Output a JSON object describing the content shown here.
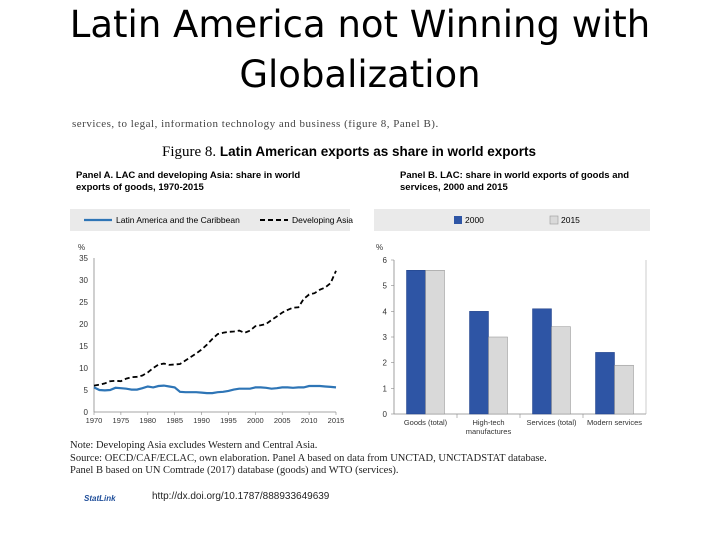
{
  "slide": {
    "title": "Latin America not Winning with Globalization"
  },
  "figure": {
    "header_cut_text": "services, to legal, information technology and business (figure 8, Panel B).",
    "number": "Figure 8.",
    "title": "Latin American exports as share in world exports",
    "notes": [
      "Note: Developing Asia excludes Western and Central Asia.",
      "Source: OECD/CAF/ECLAC, own elaboration. Panel A based on data from UNCTAD, UNCTADSTAT database.",
      "Panel B based on UN Comtrade (2017) database (goods) and WTO (services)."
    ],
    "statlink_label": "StatLink",
    "statlink_url": "http://dx.doi.org/10.1787/888933649639"
  },
  "chart_data": [
    {
      "type": "line",
      "title": "Panel A. LAC and developing Asia: share in world exports of goods, 1970-2015",
      "ylabel": "%",
      "ylim": [
        0,
        35
      ],
      "yticks": [
        "0",
        "5",
        "10",
        "15",
        "20",
        "25",
        "30",
        "35"
      ],
      "xlim": [
        1970,
        2015
      ],
      "xticks": [
        "1970",
        "1975",
        "1980",
        "1985",
        "1990",
        "1995",
        "2000",
        "2005",
        "2010",
        "2015"
      ],
      "grid": false,
      "legend_position": "top",
      "colors": {
        "lac": "#2e75b6",
        "asia": "#000000"
      },
      "series": [
        {
          "name": "Latin America and the Caribbean",
          "style": "solid",
          "x": [
            1970,
            1971,
            1972,
            1973,
            1974,
            1975,
            1976,
            1977,
            1978,
            1979,
            1980,
            1981,
            1982,
            1983,
            1984,
            1985,
            1986,
            1987,
            1988,
            1989,
            1990,
            1991,
            1992,
            1993,
            1994,
            1995,
            1996,
            1997,
            1998,
            1999,
            2000,
            2001,
            2002,
            2003,
            2004,
            2005,
            2006,
            2007,
            2008,
            2009,
            2010,
            2011,
            2012,
            2013,
            2014,
            2015
          ],
          "values": [
            5.6,
            5.0,
            4.9,
            5.0,
            5.5,
            5.4,
            5.3,
            5.1,
            5.1,
            5.4,
            5.8,
            5.6,
            5.9,
            6.0,
            5.8,
            5.6,
            4.6,
            4.5,
            4.5,
            4.5,
            4.4,
            4.3,
            4.3,
            4.5,
            4.6,
            4.8,
            5.1,
            5.3,
            5.3,
            5.3,
            5.6,
            5.6,
            5.5,
            5.3,
            5.4,
            5.6,
            5.6,
            5.5,
            5.6,
            5.6,
            5.9,
            5.9,
            5.9,
            5.8,
            5.7,
            5.6
          ]
        },
        {
          "name": "Developing Asia",
          "style": "dashed",
          "x": [
            1970,
            1971,
            1972,
            1973,
            1974,
            1975,
            1976,
            1977,
            1978,
            1979,
            1980,
            1981,
            1982,
            1983,
            1984,
            1985,
            1986,
            1987,
            1988,
            1989,
            1990,
            1991,
            1992,
            1993,
            1994,
            1995,
            1996,
            1997,
            1998,
            1999,
            2000,
            2001,
            2002,
            2003,
            2004,
            2005,
            2006,
            2007,
            2008,
            2009,
            2010,
            2011,
            2012,
            2013,
            2014,
            2015
          ],
          "values": [
            6.0,
            6.2,
            6.5,
            7.0,
            7.1,
            7.0,
            7.6,
            7.9,
            8.0,
            8.3,
            9.0,
            10.0,
            10.8,
            11.0,
            10.7,
            10.8,
            10.9,
            11.7,
            12.5,
            13.3,
            14.2,
            15.3,
            16.6,
            17.7,
            18.0,
            18.2,
            18.3,
            18.5,
            18.0,
            18.5,
            19.5,
            19.7,
            20.0,
            20.9,
            21.7,
            22.6,
            23.2,
            23.7,
            23.8,
            25.7,
            26.7,
            27.0,
            27.8,
            28.3,
            29.3,
            32.1
          ]
        }
      ]
    },
    {
      "type": "bar",
      "title": "Panel B. LAC: share in world exports of goods and services, 2000 and 2015",
      "ylabel": "%",
      "ylim": [
        0,
        6
      ],
      "yticks": [
        "0",
        "1",
        "2",
        "3",
        "4",
        "5",
        "6"
      ],
      "categories": [
        "Goods (total)",
        "High-tech manufactures",
        "Services (total)",
        "Modern services"
      ],
      "category_lines": [
        [
          "Goods (total)"
        ],
        [
          "High-tech",
          "manufactures"
        ],
        [
          "Services (total)"
        ],
        [
          "Modern services"
        ]
      ],
      "grid": false,
      "legend_position": "top",
      "series": [
        {
          "name": "2000",
          "color": "#2e55a5",
          "values": [
            5.6,
            4.0,
            4.1,
            2.4
          ]
        },
        {
          "name": "2015",
          "color": "#d9d9d9",
          "values": [
            5.6,
            3.0,
            3.4,
            1.9
          ]
        }
      ]
    }
  ]
}
